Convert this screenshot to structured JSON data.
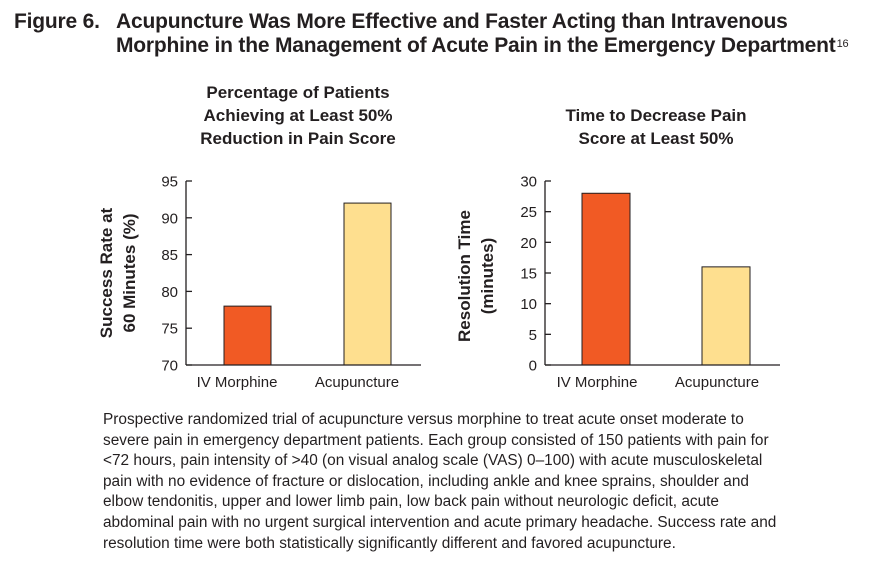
{
  "figure": {
    "label": "Figure 6.",
    "title_line1": "Acupuncture Was More Effective and Faster Acting than Intravenous",
    "title_line2": "Morphine in the Management of Acute Pain in the Emergency Department",
    "citation": "16"
  },
  "colors": {
    "morphine": "#f15a24",
    "acupuncture": "#fedf8f",
    "axis": "#231f20"
  },
  "chart_data": [
    {
      "type": "bar",
      "title": [
        "Percentage of Patients",
        "Achieving at Least 50%",
        "Reduction in Pain Score"
      ],
      "categories": [
        "IV Morphine",
        "Acupuncture"
      ],
      "values": [
        78,
        92
      ],
      "ylabel": [
        "Success Rate at",
        "60 Minutes (%)"
      ],
      "xlabel": "",
      "ylim": [
        70,
        95
      ],
      "yticks": [
        70,
        75,
        80,
        85,
        90,
        95
      ],
      "grid": false
    },
    {
      "type": "bar",
      "title": [
        "Time to Decrease Pain",
        "Score at Least 50%"
      ],
      "categories": [
        "IV Morphine",
        "Acupuncture"
      ],
      "values": [
        28,
        16
      ],
      "ylabel": [
        "Resolution Time",
        "(minutes)"
      ],
      "xlabel": "",
      "ylim": [
        0,
        30
      ],
      "yticks": [
        0,
        5,
        10,
        15,
        20,
        25,
        30
      ],
      "grid": false
    }
  ],
  "caption": "Prospective randomized trial of acupuncture versus morphine to treat acute onset moderate to severe pain in emergency department patients. Each group consisted of 150 patients with pain for <72 hours, pain intensity of >40 (on visual analog scale (VAS) 0–100) with acute musculoskeletal pain with no evidence of fracture or dislocation, including ankle and knee sprains, shoulder and elbow tendonitis, upper and lower limb pain, low back pain without neurologic deficit, acute abdominal pain with no urgent surgical intervention and acute primary headache. Success rate and resolution time were both statistically significantly different and favored acupuncture."
}
